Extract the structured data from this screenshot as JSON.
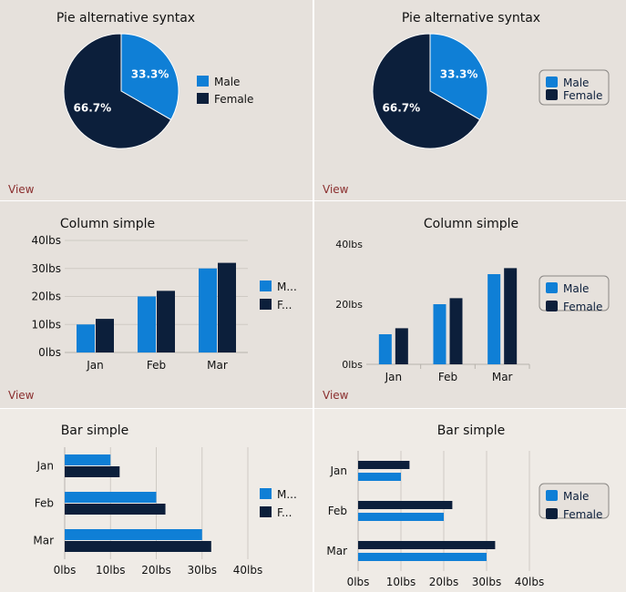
{
  "colors": {
    "male": "#0f7fd6",
    "female": "#0c1f3b",
    "grid": "#cfcac4",
    "axis": "#b7b2ad",
    "view": "#8a2e2e"
  },
  "view_label": "View",
  "chart_data": [
    {
      "id": "pie-left",
      "type": "pie",
      "title": "Pie alternative syntax",
      "labels": [
        "Male",
        "Female"
      ],
      "values": [
        33.3,
        66.7
      ],
      "value_labels": [
        "33.3%",
        "66.7%"
      ],
      "legend": "right",
      "legend_boxed": false
    },
    {
      "id": "pie-right",
      "type": "pie",
      "title": "Pie alternative syntax",
      "labels": [
        "Male",
        "Female"
      ],
      "values": [
        33.3,
        66.7
      ],
      "value_labels": [
        "33.3%",
        "66.7%"
      ],
      "legend": "right",
      "legend_boxed": true
    },
    {
      "id": "col-left",
      "type": "bar",
      "orientation": "vertical",
      "title": "Column simple",
      "categories": [
        "Jan",
        "Feb",
        "Mar"
      ],
      "series": [
        {
          "name": "M...",
          "values": [
            10,
            20,
            30
          ]
        },
        {
          "name": "F...",
          "values": [
            12,
            22,
            32
          ]
        }
      ],
      "ylim": [
        0,
        40
      ],
      "yticks": [
        "0lbs",
        "10lbs",
        "20lbs",
        "30lbs",
        "40lbs"
      ],
      "grid": true,
      "legend": "right"
    },
    {
      "id": "col-right",
      "type": "bar",
      "orientation": "vertical",
      "title": "Column simple",
      "categories": [
        "Jan",
        "Feb",
        "Mar"
      ],
      "series": [
        {
          "name": "Male",
          "values": [
            10,
            20,
            30
          ]
        },
        {
          "name": "Female",
          "values": [
            12,
            22,
            32
          ]
        }
      ],
      "ylim": [
        0,
        40
      ],
      "yticks": [
        "0lbs",
        "20lbs",
        "40lbs"
      ],
      "grid": false,
      "legend": "right"
    },
    {
      "id": "bar-left",
      "type": "bar",
      "orientation": "horizontal",
      "title": "Bar simple",
      "categories": [
        "Jan",
        "Feb",
        "Mar"
      ],
      "series": [
        {
          "name": "M...",
          "values": [
            10,
            20,
            30
          ]
        },
        {
          "name": "F...",
          "values": [
            12,
            22,
            32
          ]
        }
      ],
      "xlim": [
        0,
        40
      ],
      "xticks": [
        "0lbs",
        "10lbs",
        "20lbs",
        "30lbs",
        "40lbs"
      ],
      "grid": true,
      "legend": "right"
    },
    {
      "id": "bar-right",
      "type": "bar",
      "orientation": "horizontal",
      "title": "Bar simple",
      "categories": [
        "Jan",
        "Feb",
        "Mar"
      ],
      "series": [
        {
          "name": "Male",
          "values": [
            10,
            20,
            30
          ]
        },
        {
          "name": "Female",
          "values": [
            12,
            22,
            32
          ]
        }
      ],
      "xlim": [
        0,
        40
      ],
      "xticks": [
        "0lbs",
        "10lbs",
        "20lbs",
        "30lbs",
        "40lbs"
      ],
      "grid": true,
      "legend": "right",
      "female_first": true
    }
  ]
}
